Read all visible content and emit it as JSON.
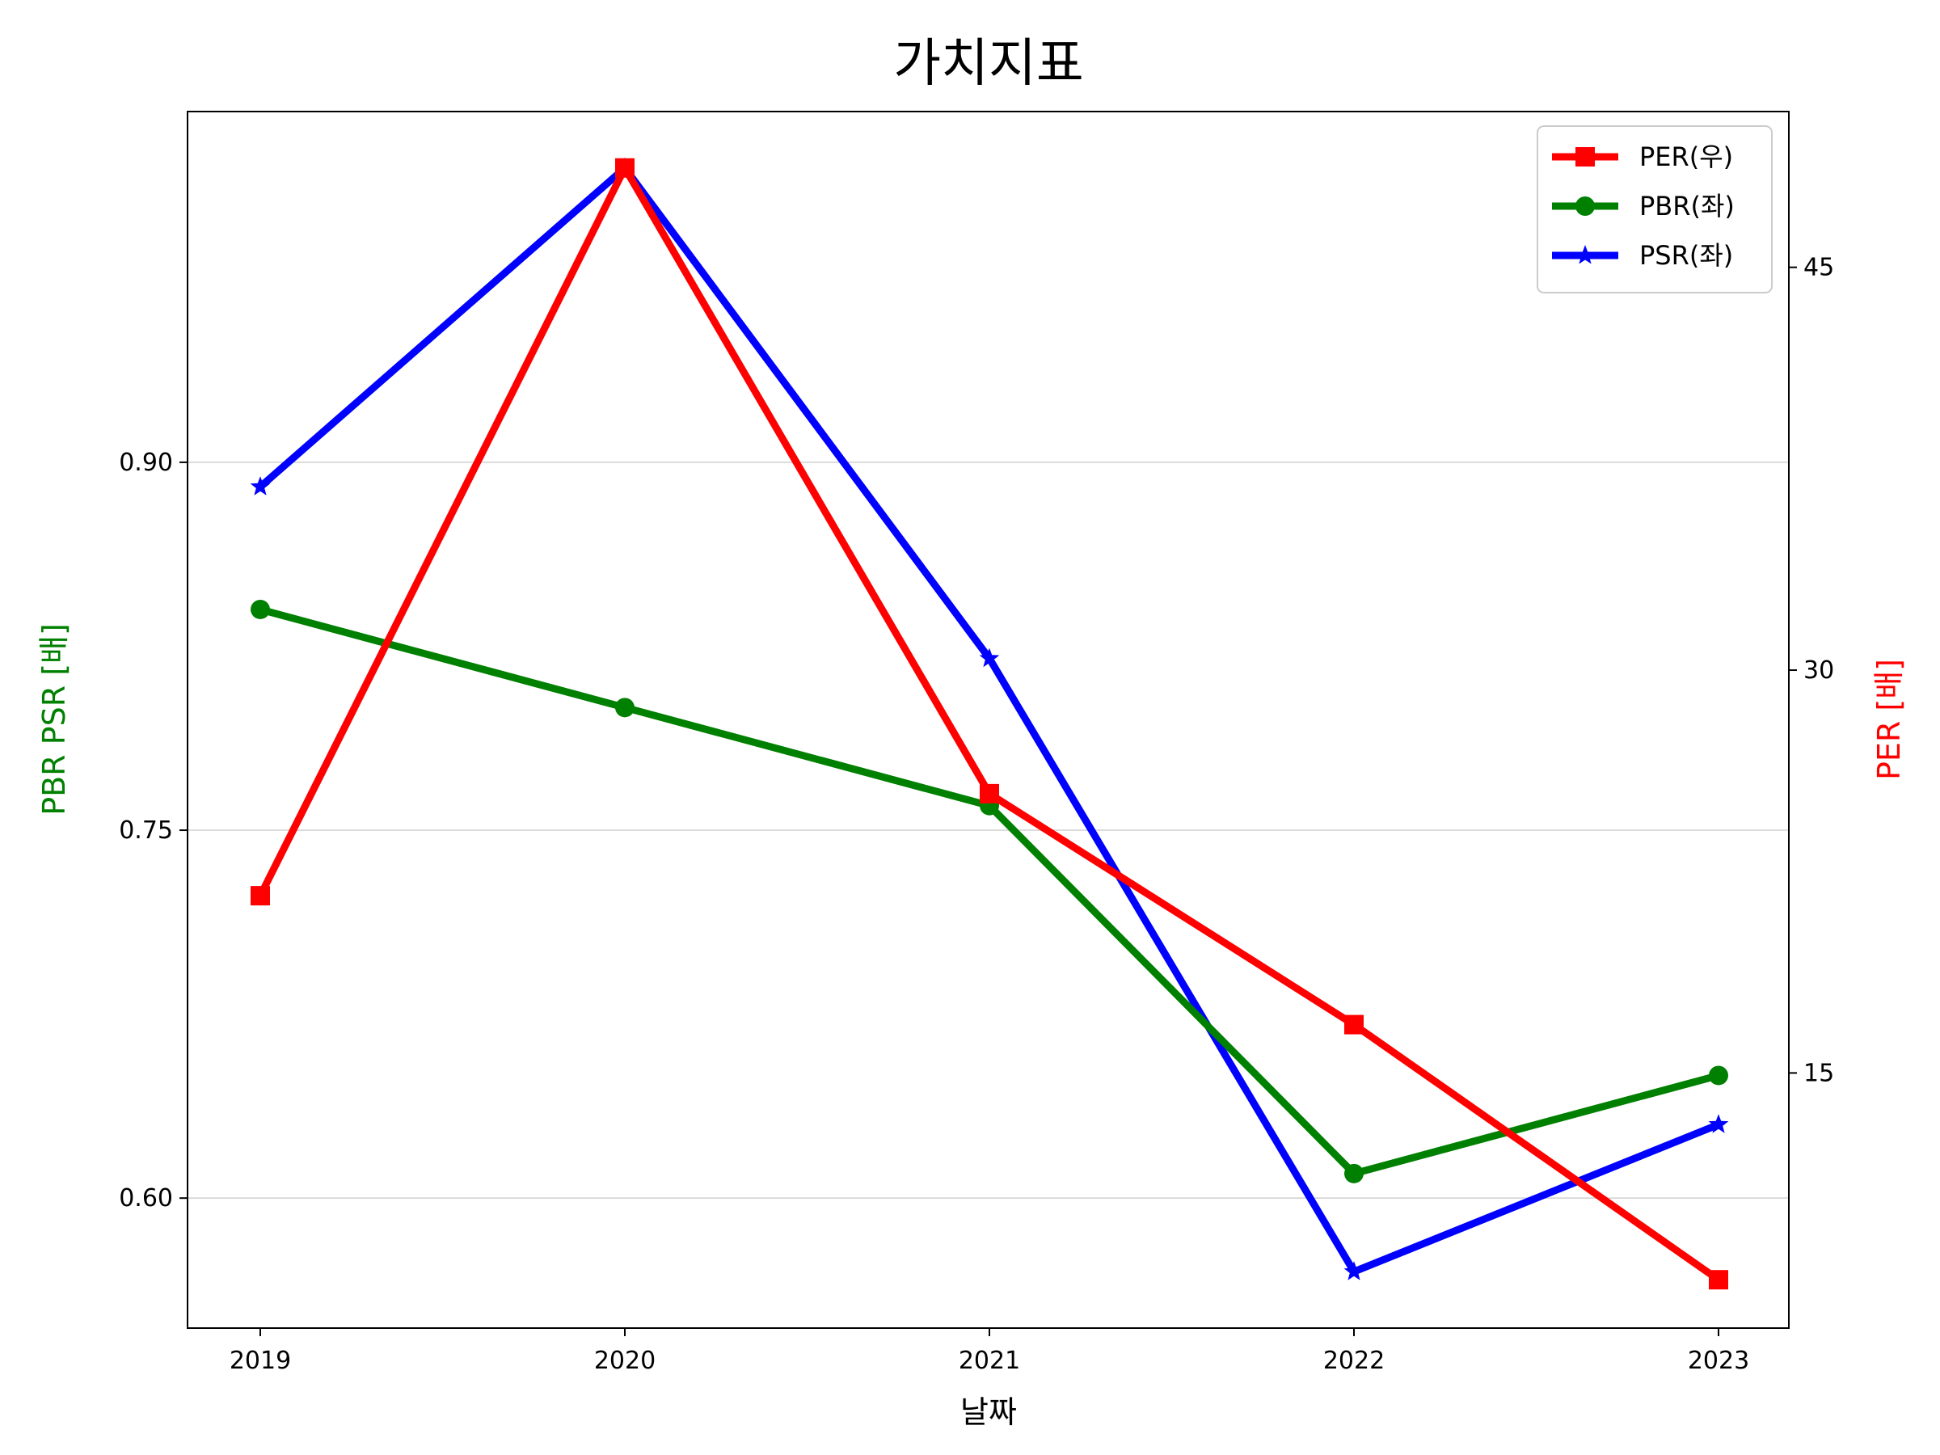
{
  "chart_data": {
    "type": "line",
    "title": "가치지표",
    "xlabel": "날짜",
    "ylabel_left": "PBR PSR [배]",
    "ylabel_right": "PER [배]",
    "categories": [
      "2019",
      "2020",
      "2021",
      "2022",
      "2023"
    ],
    "left_axis": {
      "ylim": [
        0.547,
        1.043
      ],
      "ticks": [
        0.6,
        0.75,
        0.9
      ],
      "tick_labels": [
        "0.60",
        "0.75",
        "0.90"
      ]
    },
    "right_axis": {
      "ylim": [
        5.5,
        50.8
      ],
      "ticks": [
        15,
        30,
        45
      ],
      "tick_labels": [
        "15",
        "30",
        "45"
      ]
    },
    "grid": "horizontal (left axis)",
    "legend_position": "top-right",
    "series": [
      {
        "name": "PER(우)",
        "axis": "right",
        "color": "#ff0000",
        "marker": "square",
        "values": [
          21.6,
          48.7,
          25.4,
          16.8,
          7.3
        ]
      },
      {
        "name": "PBR(좌)",
        "axis": "left",
        "color": "#008000",
        "marker": "circle",
        "values": [
          0.84,
          0.8,
          0.76,
          0.61,
          0.65
        ]
      },
      {
        "name": "PSR(좌)",
        "axis": "left",
        "color": "#0000ff",
        "marker": "star",
        "values": [
          0.89,
          1.02,
          0.82,
          0.57,
          0.63
        ]
      }
    ]
  }
}
